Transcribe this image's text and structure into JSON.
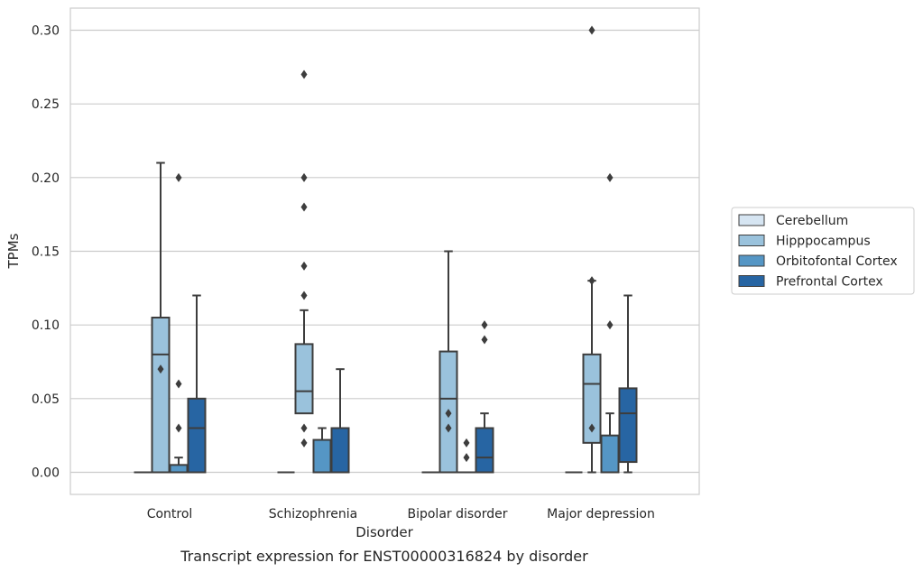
{
  "chart_data": {
    "type": "box",
    "title": "",
    "caption": "Transcript expression for ENST00000316824 by disorder",
    "xlabel": "Disorder",
    "ylabel": "TPMs",
    "ylim": [
      -0.015,
      0.315
    ],
    "yticks": [
      0.0,
      0.05,
      0.1,
      0.15,
      0.2,
      0.25,
      0.3
    ],
    "ytick_labels": [
      "0.00",
      "0.05",
      "0.10",
      "0.15",
      "0.20",
      "0.25",
      "0.30"
    ],
    "grid": "horizontal",
    "legend_position": "right",
    "categories": [
      "Control",
      "Schizophrenia",
      "Bipolar disorder",
      "Major depression"
    ],
    "series": [
      {
        "name": "Cerebellum",
        "color": "#d6e5f2",
        "boxes": [
          {
            "min": 0,
            "q1": 0,
            "median": 0,
            "q3": 0,
            "max": 0,
            "outliers": []
          },
          {
            "min": 0,
            "q1": 0,
            "median": 0,
            "q3": 0,
            "max": 0,
            "outliers": []
          },
          {
            "min": 0,
            "q1": 0,
            "median": 0,
            "q3": 0,
            "max": 0,
            "outliers": []
          },
          {
            "min": 0,
            "q1": 0,
            "median": 0,
            "q3": 0,
            "max": 0,
            "outliers": []
          }
        ]
      },
      {
        "name": "Hipppocampus",
        "color": "#9ac2dc",
        "boxes": [
          {
            "min": 0,
            "q1": 0,
            "median": 0.08,
            "q3": 0.105,
            "max": 0.21,
            "outliers": [
              0.07
            ]
          },
          {
            "min": 0.04,
            "q1": 0.04,
            "median": 0.055,
            "q3": 0.087,
            "max": 0.11,
            "outliers": [
              0.03,
              0.02,
              0.18,
              0.2,
              0.27,
              0.14,
              0.12
            ]
          },
          {
            "min": 0,
            "q1": 0,
            "median": 0.05,
            "q3": 0.082,
            "max": 0.15,
            "outliers": [
              0.04,
              0.03
            ]
          },
          {
            "min": 0,
            "q1": 0.02,
            "median": 0.06,
            "q3": 0.08,
            "max": 0.13,
            "outliers": [
              0.13,
              0.03,
              0.3
            ]
          }
        ]
      },
      {
        "name": "Orbitofontal Cortex",
        "color": "#5596c5",
        "boxes": [
          {
            "min": 0,
            "q1": 0,
            "median": 0,
            "q3": 0.005,
            "max": 0.01,
            "outliers": [
              0.2,
              0.06,
              0.03
            ]
          },
          {
            "min": 0,
            "q1": 0,
            "median": 0,
            "q3": 0.022,
            "max": 0.03,
            "outliers": []
          },
          {
            "min": 0,
            "q1": 0,
            "median": 0,
            "q3": 0,
            "max": 0,
            "outliers": [
              0.02,
              0.01
            ]
          },
          {
            "min": 0,
            "q1": 0,
            "median": 0,
            "q3": 0.025,
            "max": 0.04,
            "outliers": [
              0.2,
              0.1
            ]
          }
        ]
      },
      {
        "name": "Prefrontal Cortex",
        "color": "#2765a3",
        "boxes": [
          {
            "min": 0,
            "q1": 0,
            "median": 0.03,
            "q3": 0.05,
            "max": 0.12,
            "outliers": []
          },
          {
            "min": 0,
            "q1": 0,
            "median": 0,
            "q3": 0.03,
            "max": 0.07,
            "outliers": []
          },
          {
            "min": 0,
            "q1": 0,
            "median": 0.01,
            "q3": 0.03,
            "max": 0.04,
            "outliers": [
              0.1,
              0.09
            ]
          },
          {
            "min": 0,
            "q1": 0.007,
            "median": 0.04,
            "q3": 0.057,
            "max": 0.12,
            "outliers": []
          }
        ]
      }
    ]
  }
}
